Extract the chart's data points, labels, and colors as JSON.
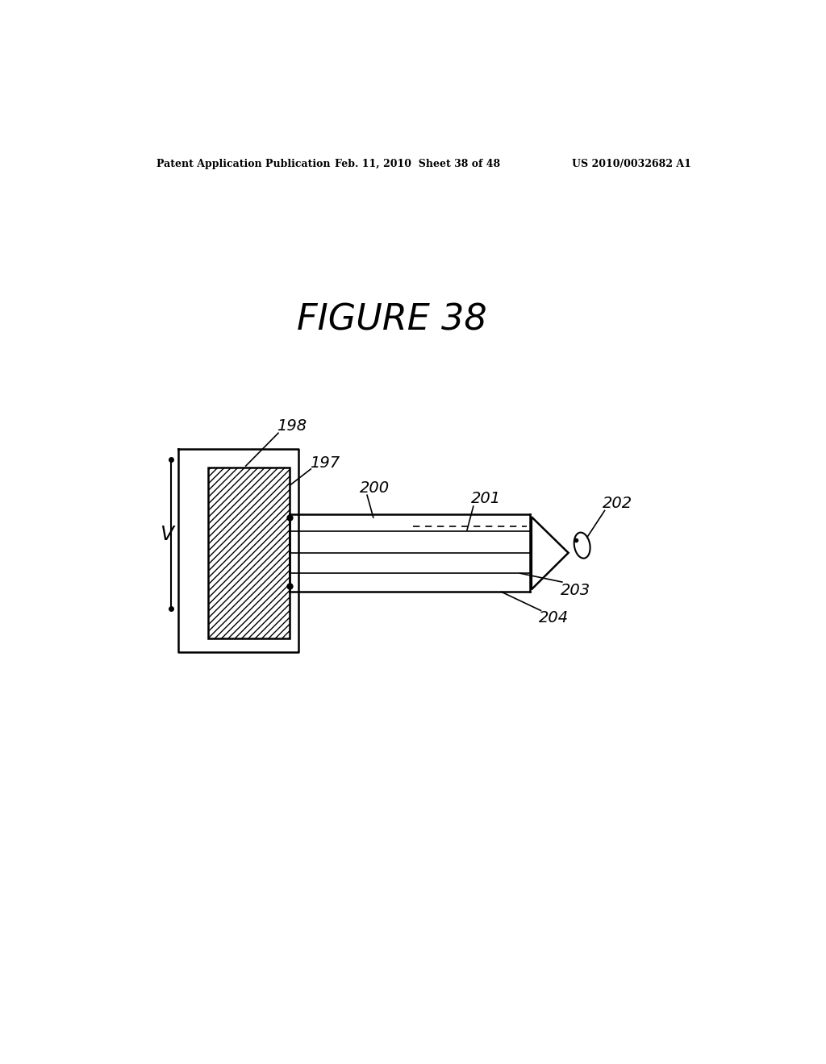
{
  "header_left": "Patent Application Publication",
  "header_mid": "Feb. 11, 2010  Sheet 38 of 48",
  "header_right": "US 2010/0032682 A1",
  "bg_color": "#ffffff",
  "text_color": "#000000",
  "figure_title": "FIGURE 38",
  "label_198": "198",
  "label_197": "197",
  "label_200": "200",
  "label_201": "201",
  "label_202": "202",
  "label_203": "203",
  "label_204": "204",
  "label_V": "V"
}
